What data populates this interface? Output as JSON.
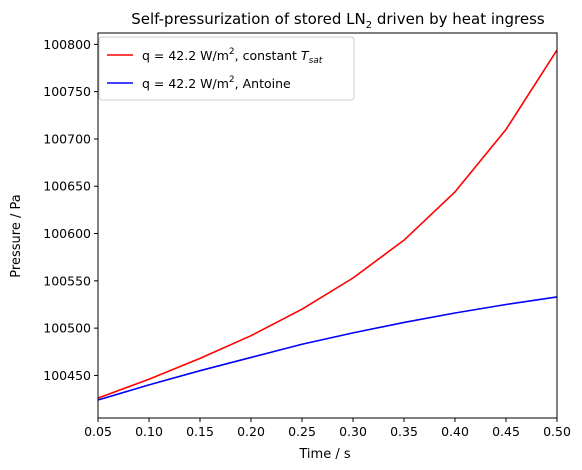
{
  "chart_data": {
    "type": "line",
    "title_main": "Self-pressurization of stored LN",
    "title_sub": "2",
    "title_tail": " driven by heat ingress",
    "xlabel": "Time / s",
    "ylabel": "Pressure / Pa",
    "xlim": [
      0.05,
      0.5
    ],
    "ylim": [
      100405,
      100812
    ],
    "xticks": [
      0.05,
      0.1,
      0.15,
      0.2,
      0.25,
      0.3,
      0.35,
      0.4,
      0.45,
      0.5
    ],
    "xtick_labels": [
      "0.05",
      "0.10",
      "0.15",
      "0.20",
      "0.25",
      "0.30",
      "0.35",
      "0.40",
      "0.45",
      "0.50"
    ],
    "yticks": [
      100450,
      100500,
      100550,
      100600,
      100650,
      100700,
      100750,
      100800
    ],
    "ytick_labels": [
      "100450",
      "100500",
      "100550",
      "100600",
      "100650",
      "100700",
      "100750",
      "100800"
    ],
    "grid": false,
    "legend_position": "top-left",
    "series": [
      {
        "name_lead": "q = 42.2 W/m",
        "name_sup": "2",
        "name_mid": ", constant ",
        "name_ital": "T",
        "name_sub": "sat",
        "color": "#ff0000",
        "x": [
          0.05,
          0.1,
          0.15,
          0.2,
          0.25,
          0.3,
          0.35,
          0.4,
          0.45,
          0.5
        ],
        "y": [
          100426,
          100446,
          100468,
          100492,
          100520,
          100553,
          100593,
          100644,
          100710,
          100794
        ]
      },
      {
        "name_lead": "q = 42.2 W/m",
        "name_sup": "2",
        "name_mid": ", Antoine",
        "name_ital": "",
        "name_sub": "",
        "color": "#0000ff",
        "x": [
          0.05,
          0.1,
          0.15,
          0.2,
          0.25,
          0.3,
          0.35,
          0.4,
          0.45,
          0.5
        ],
        "y": [
          100424,
          100440,
          100455,
          100469,
          100483,
          100495,
          100506,
          100516,
          100525,
          100533
        ]
      }
    ]
  }
}
